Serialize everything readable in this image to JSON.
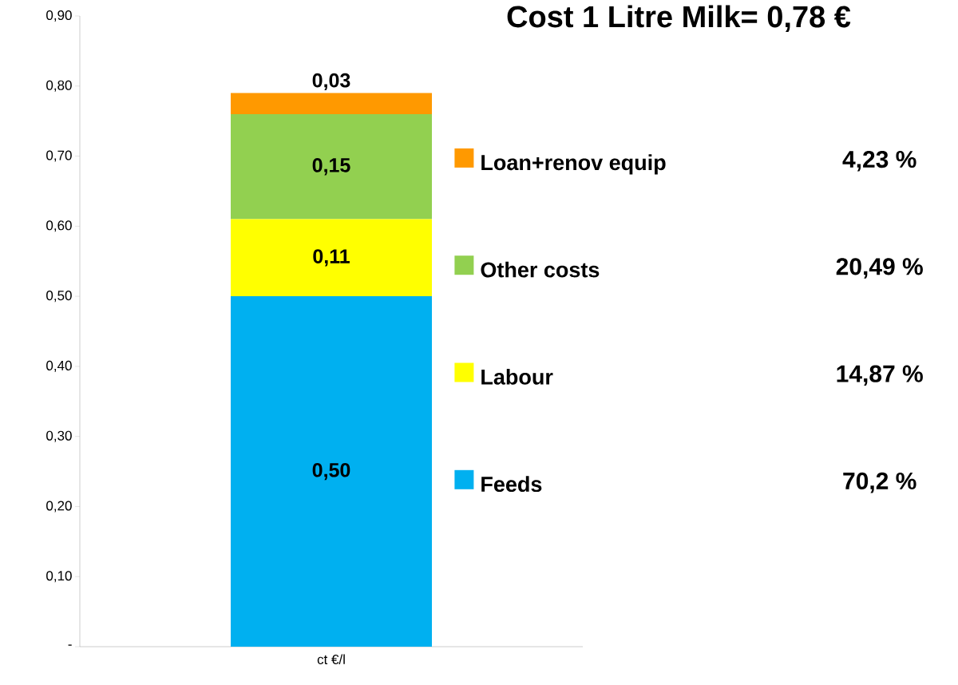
{
  "chart_data": {
    "type": "bar",
    "stacked": true,
    "title": "Cost 1 Litre Milk= 0,78 €",
    "categories": [
      "ct €/l"
    ],
    "series": [
      {
        "name": "Feeds",
        "color": "#00b0f0",
        "values": [
          0.5
        ],
        "value_labels": [
          "0,50"
        ]
      },
      {
        "name": "Labour",
        "color": "#ffff00",
        "values": [
          0.11
        ],
        "value_labels": [
          "0,11"
        ]
      },
      {
        "name": "Other costs",
        "color": "#92d050",
        "values": [
          0.15
        ],
        "value_labels": [
          "0,15"
        ]
      },
      {
        "name": "Loan+renov equip",
        "color": "#ff9900",
        "values": [
          0.03
        ],
        "value_labels": [
          "0,03"
        ]
      }
    ],
    "ylim": [
      0,
      0.9
    ],
    "yticks": [
      {
        "value": 0,
        "label": "-"
      },
      {
        "value": 0.1,
        "label": "0,10"
      },
      {
        "value": 0.2,
        "label": "0,20"
      },
      {
        "value": 0.3,
        "label": "0,30"
      },
      {
        "value": 0.4,
        "label": "0,40"
      },
      {
        "value": 0.5,
        "label": "0,50"
      },
      {
        "value": 0.6,
        "label": "0,60"
      },
      {
        "value": 0.7,
        "label": "0,70"
      },
      {
        "value": 0.8,
        "label": "0,80"
      },
      {
        "value": 0.9,
        "label": "0,90"
      }
    ],
    "legend": "right",
    "annotations": [
      "4,23 %",
      "20,49 %",
      "14,87 %",
      "70,2 %"
    ]
  }
}
